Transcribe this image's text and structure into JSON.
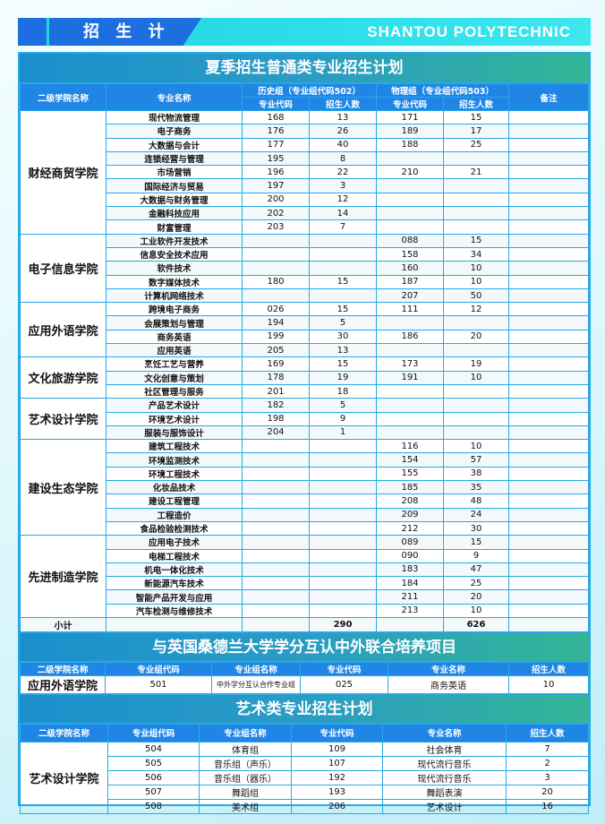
{
  "header": {
    "section_label": "招 生 计 划",
    "school_english": "SHANTOU POLYTECHNIC"
  },
  "summer_plan": {
    "title": "夏季招生普通类专业招生计划",
    "headers": {
      "college": "二级学院名称",
      "major": "专业名称",
      "history_group": "历史组（专业组代码502）",
      "physics_group": "物理组（专业组代码503）",
      "major_code": "专业代码",
      "enrollment": "招生人数",
      "remarks": "备注"
    },
    "colleges": [
      {
        "name": "财经商贸学院",
        "rows": [
          [
            "现代物流管理",
            "168",
            "13",
            "171",
            "15"
          ],
          [
            "电子商务",
            "176",
            "26",
            "189",
            "17"
          ],
          [
            "大数据与会计",
            "177",
            "40",
            "188",
            "25"
          ],
          [
            "连锁经营与管理",
            "195",
            "8",
            "",
            ""
          ],
          [
            "市场营销",
            "196",
            "22",
            "210",
            "21"
          ],
          [
            "国际经济与贸易",
            "197",
            "3",
            "",
            ""
          ],
          [
            "大数据与财务管理",
            "200",
            "12",
            "",
            ""
          ],
          [
            "金融科技应用",
            "202",
            "14",
            "",
            ""
          ],
          [
            "财富管理",
            "203",
            "7",
            "",
            ""
          ]
        ]
      },
      {
        "name": "电子信息学院",
        "rows": [
          [
            "工业软件开发技术",
            "",
            "",
            "088",
            "15"
          ],
          [
            "信息安全技术应用",
            "",
            "",
            "158",
            "34"
          ],
          [
            "软件技术",
            "",
            "",
            "160",
            "10"
          ],
          [
            "数字媒体技术",
            "180",
            "15",
            "187",
            "10"
          ],
          [
            "计算机网络技术",
            "",
            "",
            "207",
            "50"
          ]
        ]
      },
      {
        "name": "应用外语学院",
        "rows": [
          [
            "跨境电子商务",
            "026",
            "15",
            "111",
            "12"
          ],
          [
            "会展策划与管理",
            "194",
            "5",
            "",
            ""
          ],
          [
            "商务英语",
            "199",
            "30",
            "186",
            "20"
          ],
          [
            "应用英语",
            "205",
            "13",
            "",
            ""
          ]
        ]
      },
      {
        "name": "文化旅游学院",
        "rows": [
          [
            "烹饪工艺与营养",
            "169",
            "15",
            "173",
            "19"
          ],
          [
            "文化创意与策划",
            "178",
            "19",
            "191",
            "10"
          ],
          [
            "社区管理与服务",
            "201",
            "18",
            "",
            ""
          ]
        ]
      },
      {
        "name": "艺术设计学院",
        "rows": [
          [
            "产品艺术设计",
            "182",
            "5",
            "",
            ""
          ],
          [
            "环境艺术设计",
            "198",
            "9",
            "",
            ""
          ],
          [
            "服装与服饰设计",
            "204",
            "1",
            "",
            ""
          ]
        ]
      },
      {
        "name": "建设生态学院",
        "rows": [
          [
            "建筑工程技术",
            "",
            "",
            "116",
            "10"
          ],
          [
            "环境监测技术",
            "",
            "",
            "154",
            "57"
          ],
          [
            "环境工程技术",
            "",
            "",
            "155",
            "38"
          ],
          [
            "化妆品技术",
            "",
            "",
            "185",
            "35"
          ],
          [
            "建设工程管理",
            "",
            "",
            "208",
            "48"
          ],
          [
            "工程造价",
            "",
            "",
            "209",
            "24"
          ],
          [
            "食品检验检测技术",
            "",
            "",
            "212",
            "30"
          ]
        ]
      },
      {
        "name": "先进制造学院",
        "rows": [
          [
            "应用电子技术",
            "",
            "",
            "089",
            "15"
          ],
          [
            "电梯工程技术",
            "",
            "",
            "090",
            "9"
          ],
          [
            "机电一体化技术",
            "",
            "",
            "183",
            "47"
          ],
          [
            "新能源汽车技术",
            "",
            "",
            "184",
            "25"
          ],
          [
            "智能产品开发与应用",
            "",
            "",
            "211",
            "20"
          ],
          [
            "汽车检测与维修技术",
            "",
            "",
            "213",
            "10"
          ]
        ]
      }
    ],
    "subtotal": {
      "label": "小计",
      "history_total": "290",
      "physics_total": "626"
    }
  },
  "joint_program": {
    "title": "与英国桑德兰大学学分互认中外联合培养项目",
    "headers": [
      "二级学院名称",
      "专业组代码",
      "专业组名称",
      "专业代码",
      "专业名称",
      "招生人数"
    ],
    "row": [
      "应用外语学院",
      "501",
      "中外学分互认合作专业组",
      "025",
      "商务英语",
      "10"
    ]
  },
  "art_plan": {
    "title": "艺术类专业招生计划",
    "headers": [
      "二级学院名称",
      "专业组代码",
      "专业组名称",
      "专业代码",
      "专业名称",
      "招生人数"
    ],
    "college": "艺术设计学院",
    "rows": [
      [
        "504",
        "体育组",
        "109",
        "社会体育",
        "7"
      ],
      [
        "505",
        "音乐组（声乐）",
        "107",
        "现代流行音乐",
        "2"
      ],
      [
        "506",
        "音乐组（器乐）",
        "192",
        "现代流行音乐",
        "3"
      ],
      [
        "507",
        "舞蹈组",
        "193",
        "舞蹈表演",
        "20"
      ],
      [
        "508",
        "美术组",
        "206",
        "艺术设计",
        "16"
      ]
    ]
  },
  "colors": {
    "header_blue": "#1f86e6",
    "border": "#27a9e6",
    "title_teal": "#2a9cc4",
    "subtotal": "#5ad3f2"
  }
}
